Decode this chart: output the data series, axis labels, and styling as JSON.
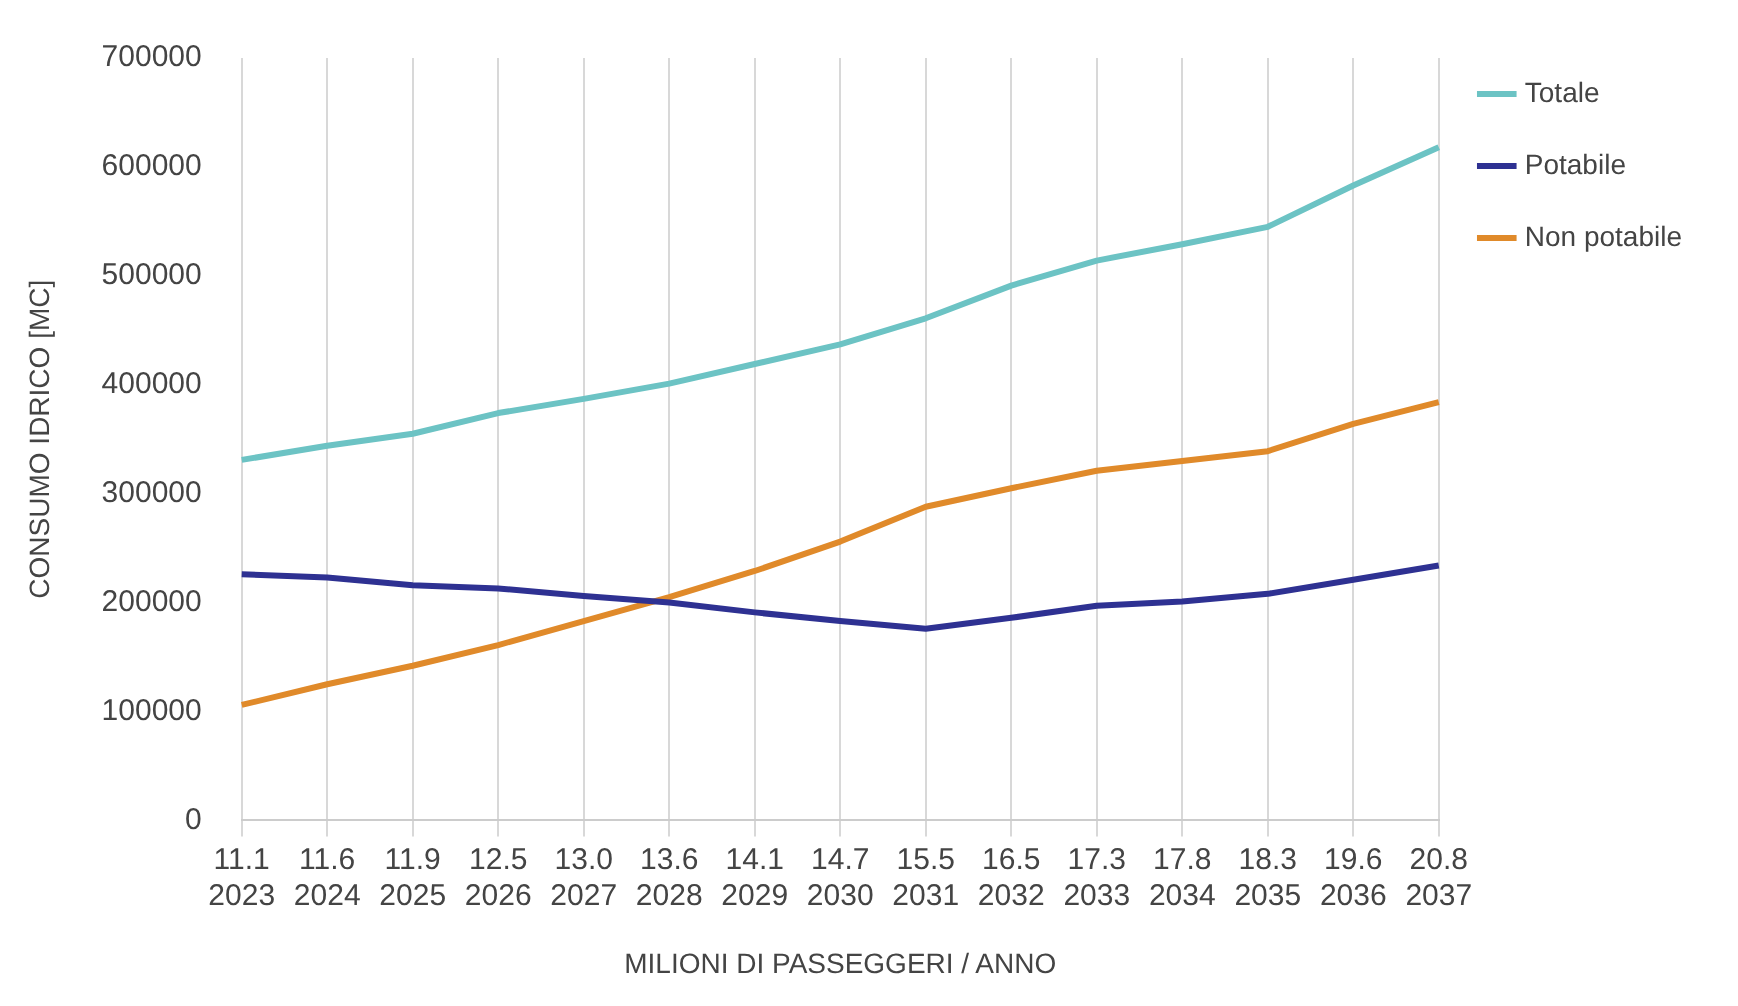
{
  "chart_data": {
    "type": "line",
    "xlabel": "MILIONI DI PASSEGGERI / ANNO",
    "ylabel": "CONSUMO IDRICO [MC]",
    "categories": [
      "11.1\n2023",
      "11.6\n2024",
      "11.9\n2025",
      "12.5\n2026",
      "13.0\n2027",
      "13.6\n2028",
      "14.1\n2029",
      "14.7\n2030",
      "15.5\n2031",
      "16.5\n2032",
      "17.3\n2033",
      "17.8\n2034",
      "18.3\n2035",
      "19.6\n2036",
      "20.8\n2037"
    ],
    "series": [
      {
        "name": "Totale",
        "color": "#6cc3c4",
        "values": [
          331000,
          344000,
          355000,
          374000,
          387000,
          401000,
          419000,
          437000,
          461000,
          491000,
          514000,
          529000,
          545000,
          583000,
          618000
        ]
      },
      {
        "name": "Potabile",
        "color": "#2e3192",
        "values": [
          226000,
          223000,
          216000,
          213000,
          206000,
          200000,
          191000,
          183000,
          176000,
          186000,
          197000,
          201000,
          208000,
          221000,
          234000
        ]
      },
      {
        "name": "Non potabile",
        "color": "#e08a2a",
        "values": [
          106000,
          125000,
          142000,
          161000,
          183000,
          205000,
          229000,
          256000,
          288000,
          305000,
          321000,
          330000,
          339000,
          364000,
          384000
        ]
      }
    ],
    "ylim": [
      0,
      700000
    ],
    "yticks": [
      0,
      100000,
      200000,
      300000,
      400000,
      500000,
      600000,
      700000
    ],
    "grid": "x",
    "legend": "right",
    "marker": "none",
    "line_style": "solid"
  }
}
